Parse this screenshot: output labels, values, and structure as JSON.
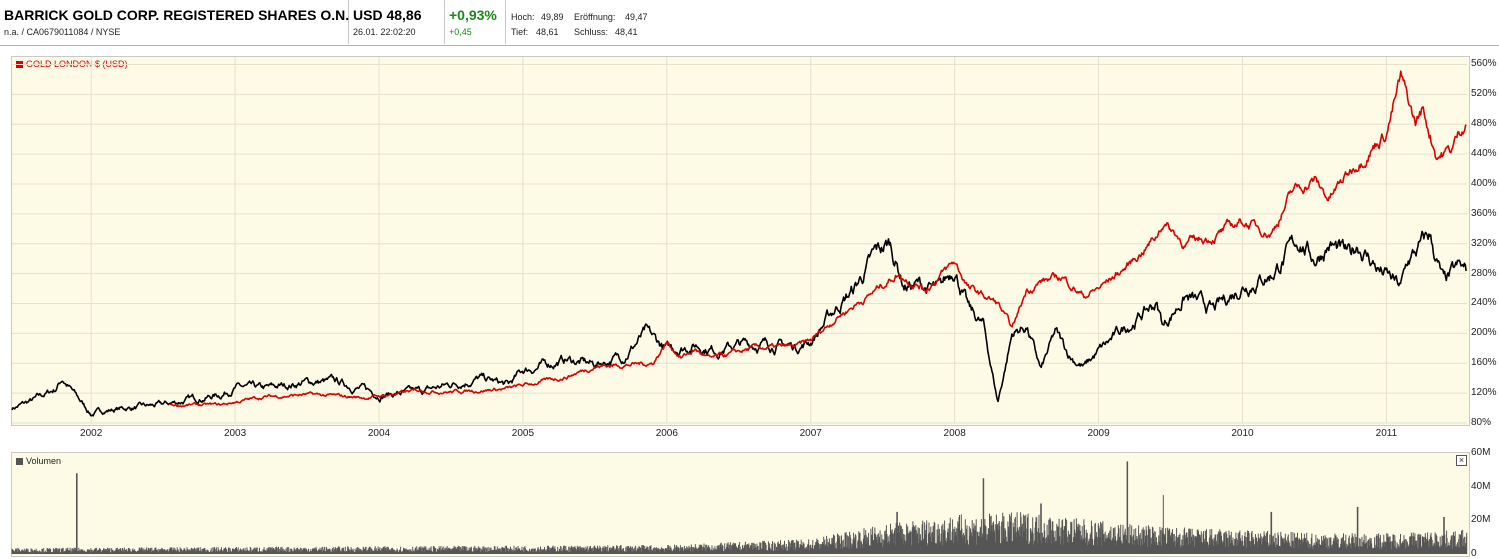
{
  "header": {
    "title": "BARRICK GOLD CORP. REGISTERED SHARES O.N.",
    "subtitle": "n.a. / CA0679011084 / NYSE",
    "price": "USD 48,86",
    "datetime": "26.01. 22:02:20",
    "change_pct": "+0,93%",
    "change_abs": "+0,45",
    "high_label": "Hoch:",
    "high_value": "49,89",
    "open_label": "Eröffnung:",
    "open_value": "49,47",
    "low_label": "Tief:",
    "low_value": "48,61",
    "close_label": "Schluss:",
    "close_value": "48,41"
  },
  "colors": {
    "gold": "#dd0000",
    "stock": "#000000",
    "volume": "#555555",
    "positive": "#178a17"
  },
  "chart_data": [
    {
      "type": "line",
      "legend": [
        "GOLD LONDON $ (USD)"
      ],
      "ylim": [
        80,
        570
      ],
      "yticks": [
        80,
        120,
        160,
        200,
        240,
        280,
        320,
        360,
        400,
        440,
        480,
        520,
        560
      ],
      "ytick_labels": [
        "80%",
        "120%",
        "160%",
        "200%",
        "240%",
        "280%",
        "320%",
        "360%",
        "400%",
        "440%",
        "480%",
        "520%",
        "560%"
      ],
      "xlim": [
        2001.45,
        2011.56
      ],
      "xticks": [
        2002,
        2003,
        2004,
        2005,
        2006,
        2007,
        2008,
        2009,
        2010,
        2011
      ],
      "xtick_labels": [
        "2002",
        "2003",
        "2004",
        "2005",
        "2006",
        "2007",
        "2008",
        "2009",
        "2010",
        "2011"
      ],
      "series": [
        {
          "name": "BARRICK GOLD CORP.",
          "color": "#000000",
          "x": [
            2001.45,
            2001.6,
            2001.75,
            2001.8,
            2001.9,
            2002.0,
            2002.1,
            2002.25,
            2002.4,
            2002.5,
            2002.7,
            2002.9,
            2003.0,
            2003.2,
            2003.5,
            2003.7,
            2003.9,
            2004.0,
            2004.3,
            2004.5,
            2004.7,
            2004.9,
            2005.0,
            2005.3,
            2005.5,
            2005.7,
            2005.85,
            2006.0,
            2006.2,
            2006.35,
            2006.5,
            2006.7,
            2006.9,
            2007.0,
            2007.2,
            2007.3,
            2007.45,
            2007.55,
            2007.65,
            2007.75,
            2007.9,
            2008.0,
            2008.1,
            2008.2,
            2008.3,
            2008.4,
            2008.5,
            2008.6,
            2008.7,
            2008.8,
            2008.9,
            2009.0,
            2009.2,
            2009.4,
            2009.45,
            2009.6,
            2009.8,
            2010.0,
            2010.2,
            2010.4,
            2010.5,
            2010.6,
            2010.75,
            2010.8,
            2010.95,
            2011.1,
            2011.15,
            2011.3,
            2011.4,
            2011.5,
            2011.56
          ],
          "y": [
            100,
            110,
            125,
            140,
            115,
            92,
            97,
            100,
            102,
            104,
            112,
            118,
            128,
            125,
            135,
            135,
            125,
            118,
            122,
            132,
            140,
            130,
            150,
            165,
            158,
            170,
            200,
            178,
            185,
            178,
            185,
            186,
            182,
            190,
            240,
            258,
            305,
            320,
            265,
            265,
            255,
            290,
            230,
            210,
            108,
            200,
            210,
            150,
            200,
            170,
            155,
            175,
            210,
            240,
            210,
            250,
            230,
            265,
            280,
            325,
            300,
            320,
            300,
            320,
            285,
            260,
            295,
            330,
            265,
            285,
            280
          ]
        },
        {
          "name": "GOLD LONDON $ (USD)",
          "color": "#dd0000",
          "x": [
            2002.55,
            2002.9,
            2003.0,
            2003.2,
            2003.5,
            2003.9,
            2004.0,
            2004.3,
            2004.5,
            2004.9,
            2005.0,
            2005.3,
            2005.5,
            2005.9,
            2006.0,
            2006.1,
            2006.2,
            2006.3,
            2006.6,
            2006.9,
            2007.0,
            2007.2,
            2007.4,
            2007.6,
            2007.8,
            2008.0,
            2008.1,
            2008.2,
            2008.3,
            2008.4,
            2008.5,
            2008.6,
            2008.75,
            2008.9,
            2009.0,
            2009.2,
            2009.4,
            2009.45,
            2009.6,
            2009.8,
            2010.0,
            2010.2,
            2010.35,
            2010.5,
            2010.6,
            2010.8,
            2011.0,
            2011.1,
            2011.2,
            2011.25,
            2011.35,
            2011.45,
            2011.56
          ],
          "y": [
            104,
            104,
            108,
            115,
            118,
            114,
            116,
            124,
            122,
            126,
            130,
            142,
            156,
            160,
            188,
            168,
            178,
            165,
            180,
            182,
            190,
            225,
            250,
            280,
            260,
            295,
            260,
            250,
            240,
            205,
            258,
            270,
            275,
            250,
            260,
            290,
            330,
            350,
            320,
            330,
            350,
            335,
            390,
            405,
            380,
            430,
            470,
            540,
            480,
            500,
            440,
            445,
            490
          ]
        }
      ]
    },
    {
      "type": "bar",
      "legend": [
        "Volumen"
      ],
      "ylim": [
        0,
        60
      ],
      "yticks": [
        0,
        20,
        40,
        60
      ],
      "ytick_labels": [
        "0",
        "20M",
        "40M",
        "60M"
      ],
      "unit": "M",
      "xlim": [
        2001.45,
        2011.56
      ],
      "base": [
        [
          2001.45,
          2
        ],
        [
          2006.0,
          3
        ],
        [
          2007.0,
          5
        ],
        [
          2007.5,
          10
        ],
        [
          2008.0,
          13
        ],
        [
          2008.5,
          14
        ],
        [
          2009.0,
          11
        ],
        [
          2009.5,
          9
        ],
        [
          2010.0,
          8
        ],
        [
          2010.5,
          7
        ],
        [
          2011.0,
          7
        ],
        [
          2011.56,
          8
        ]
      ],
      "spikes": [
        [
          2001.9,
          48
        ],
        [
          2007.6,
          25
        ],
        [
          2008.2,
          45
        ],
        [
          2008.6,
          30
        ],
        [
          2009.2,
          55
        ],
        [
          2009.45,
          35
        ],
        [
          2010.2,
          25
        ],
        [
          2010.8,
          28
        ],
        [
          2011.4,
          22
        ]
      ]
    }
  ]
}
